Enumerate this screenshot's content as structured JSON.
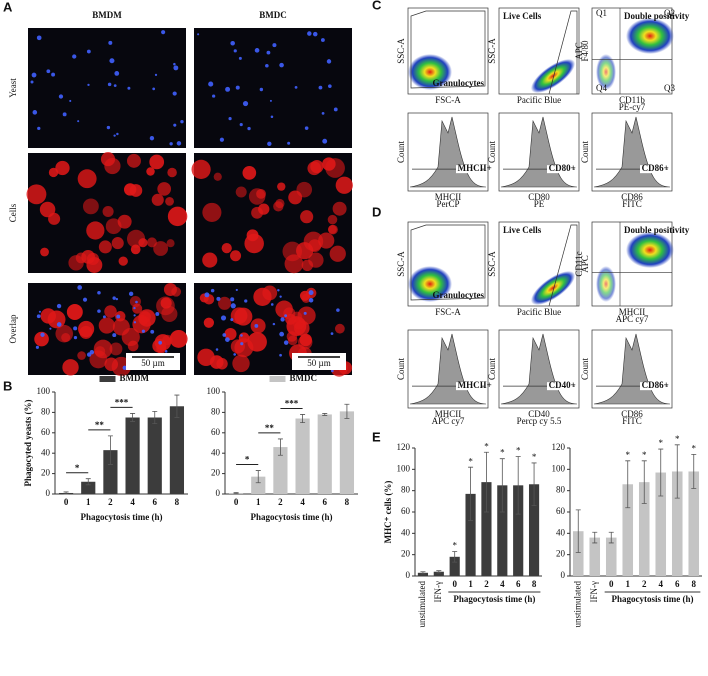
{
  "panel_labels": [
    "A",
    "B",
    "C",
    "D",
    "E"
  ],
  "panel_a": {
    "columns": [
      "BMDM",
      "BMDC"
    ],
    "rows": [
      "Yeast",
      "Cells",
      "Overlap"
    ],
    "scale_bars": [
      "50 µm",
      "50 µm"
    ]
  },
  "panel_c": {
    "plots": [
      {
        "y": [
          "SSC-A"
        ],
        "x": [
          "FSC-A"
        ],
        "gate": "Granulocytes"
      },
      {
        "y": [
          "SSC-A"
        ],
        "x": [
          "Pacific Blue"
        ],
        "gate": "Live Cells"
      },
      {
        "y": [
          "APC",
          "F4/80"
        ],
        "x": [
          "CD11b",
          "PE-cy7"
        ],
        "gate": "Double positivity",
        "quadrants": [
          "Q1",
          "Q2",
          "Q4",
          "Q3"
        ]
      },
      {
        "y": [
          "Count"
        ],
        "x": [
          "MHCII",
          "PerCP"
        ],
        "gate": "MHCII+"
      },
      {
        "y": [
          "Count"
        ],
        "x": [
          "CD80",
          "PE"
        ],
        "gate": "CD80+"
      },
      {
        "y": [
          "Count"
        ],
        "x": [
          "CD86",
          "FITC"
        ],
        "gate": "CD86+"
      }
    ]
  },
  "panel_d": {
    "plots": [
      {
        "y": [
          "SSC-A"
        ],
        "x": [
          "FSC-A"
        ],
        "gate": "Granulocytes"
      },
      {
        "y": [
          "SSC-A"
        ],
        "x": [
          "Pacific Blue"
        ],
        "gate": "Live Cells"
      },
      {
        "y": [
          "CD11c",
          "APC"
        ],
        "x": [
          "MHCII",
          "APC cy7"
        ],
        "gate": "Double positivity"
      },
      {
        "y": [
          "Count"
        ],
        "x": [
          "MHCII",
          "APC cy7"
        ],
        "gate": "MHCII+"
      },
      {
        "y": [
          "Count"
        ],
        "x": [
          "CD40",
          "Percp cy 5.5"
        ],
        "gate": "CD40+"
      },
      {
        "y": [
          "Count"
        ],
        "x": [
          "CD86",
          "FITC"
        ],
        "gate": "CD86+"
      }
    ]
  },
  "chart_data": [
    {
      "type": "bar",
      "categories": [
        "0",
        "1",
        "2",
        "4",
        "6",
        "8"
      ],
      "series": [
        {
          "name": "BMDM",
          "color": "#3c3c3c",
          "values": [
            1,
            12,
            43,
            75,
            75,
            86
          ],
          "errors": [
            1,
            3,
            14,
            4,
            6,
            11
          ]
        }
      ],
      "ylim": [
        0,
        100
      ],
      "yticks": [
        0,
        20,
        40,
        60,
        80,
        100
      ],
      "y_label": "Phagocyted yeasts (%)",
      "x_label": "Phagocytosis time (h)",
      "brackets": [
        "*",
        "**",
        "***",
        null,
        null,
        null
      ]
    },
    {
      "type": "bar",
      "categories": [
        "0",
        "1",
        "2",
        "4",
        "6",
        "8"
      ],
      "series": [
        {
          "name": "BMDC",
          "color": "#c4c4c4",
          "values": [
            1,
            17,
            46,
            74,
            78,
            81
          ],
          "errors": [
            0.5,
            6,
            8,
            4,
            1,
            7
          ]
        }
      ],
      "ylim": [
        0,
        100
      ],
      "yticks": [
        0,
        20,
        40,
        60,
        80,
        100
      ],
      "x_label": "Phagocytosis time (h)",
      "brackets": [
        "*",
        "**",
        "***",
        null,
        null,
        null
      ]
    },
    {
      "type": "bar",
      "categories": [
        "unstimulated",
        "IFN-γ",
        "0",
        "1",
        "2",
        "4",
        "6",
        "8"
      ],
      "series": [
        {
          "color": "#3c3c3c",
          "values": [
            3,
            4,
            18,
            77,
            88,
            85,
            85,
            86
          ],
          "errors": [
            1,
            1,
            5,
            25,
            28,
            25,
            27,
            20
          ]
        }
      ],
      "ylim": [
        0,
        120
      ],
      "yticks": [
        0,
        20,
        40,
        60,
        80,
        100,
        120
      ],
      "y_label": "MHC⁺ cells (%)",
      "x_label": "Phagocytosis time (h)",
      "stars": [
        null,
        null,
        "*",
        "*",
        "*",
        "*",
        "*",
        "*"
      ]
    },
    {
      "type": "bar",
      "categories": [
        "unstimulated",
        "IFN-γ",
        "0",
        "1",
        "2",
        "4",
        "6",
        "8"
      ],
      "series": [
        {
          "color": "#c4c4c4",
          "values": [
            42,
            36,
            36,
            86,
            88,
            97,
            98,
            98
          ],
          "errors": [
            20,
            5,
            5,
            22,
            20,
            22,
            25,
            16
          ]
        }
      ],
      "ylim": [
        0,
        120
      ],
      "yticks": [
        0,
        20,
        40,
        60,
        80,
        100,
        120
      ],
      "x_label": "Phagocytosis time (h)",
      "stars": [
        null,
        null,
        null,
        "*",
        "*",
        "*",
        "*",
        "*"
      ]
    }
  ]
}
